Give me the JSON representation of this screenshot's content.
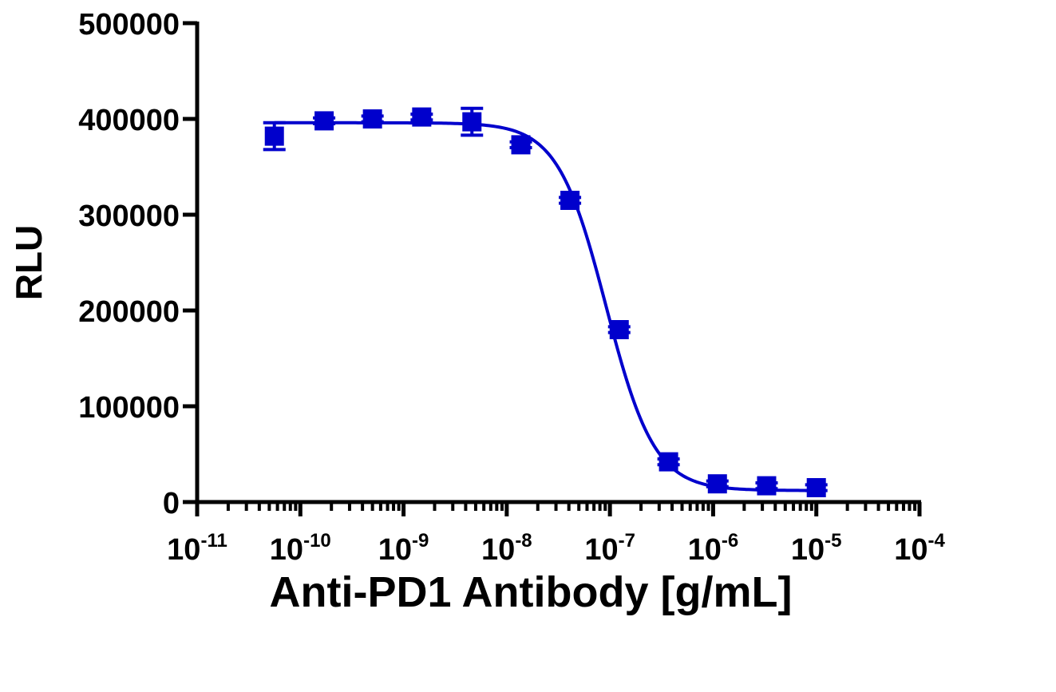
{
  "chart_data": {
    "type": "scatter",
    "title": "",
    "xlabel": "Anti-PD1 Antibody [g/mL]",
    "ylabel": "RLU",
    "xscale": "log",
    "xlim": [
      1e-11,
      0.0001
    ],
    "ylim": [
      0,
      500000
    ],
    "x_ticks": [
      {
        "base": "10",
        "exp": "-11"
      },
      {
        "base": "10",
        "exp": "-10"
      },
      {
        "base": "10",
        "exp": "-9"
      },
      {
        "base": "10",
        "exp": "-8"
      },
      {
        "base": "10",
        "exp": "-7"
      },
      {
        "base": "10",
        "exp": "-6"
      },
      {
        "base": "10",
        "exp": "-5"
      },
      {
        "base": "10",
        "exp": "-4"
      }
    ],
    "y_ticks": [
      "0",
      "100000",
      "200000",
      "300000",
      "400000",
      "500000"
    ],
    "grid": false,
    "legend": "none",
    "color": "#0000cc",
    "marker": "square",
    "series": [
      {
        "x": [
          5.6e-11,
          1.7e-10,
          5e-10,
          1.5e-09,
          4.6e-09,
          1.37e-08,
          4.1e-08,
          1.23e-07,
          3.7e-07,
          1.1e-06,
          3.3e-06,
          1e-05
        ],
        "y": [
          382000,
          398000,
          400000,
          402000,
          397000,
          373000,
          315000,
          180000,
          42000,
          19000,
          17000,
          15000
        ],
        "error": [
          14000,
          3000,
          3000,
          3000,
          14000,
          3000,
          3000,
          3000,
          3000,
          3000,
          3000,
          3000
        ]
      }
    ],
    "fit": {
      "type": "4PL",
      "top": 396000,
      "bottom": 12000,
      "ec50": 9.2e-08,
      "hill": 1.85,
      "x_range": [
        5.6e-11,
        1e-05
      ]
    }
  }
}
